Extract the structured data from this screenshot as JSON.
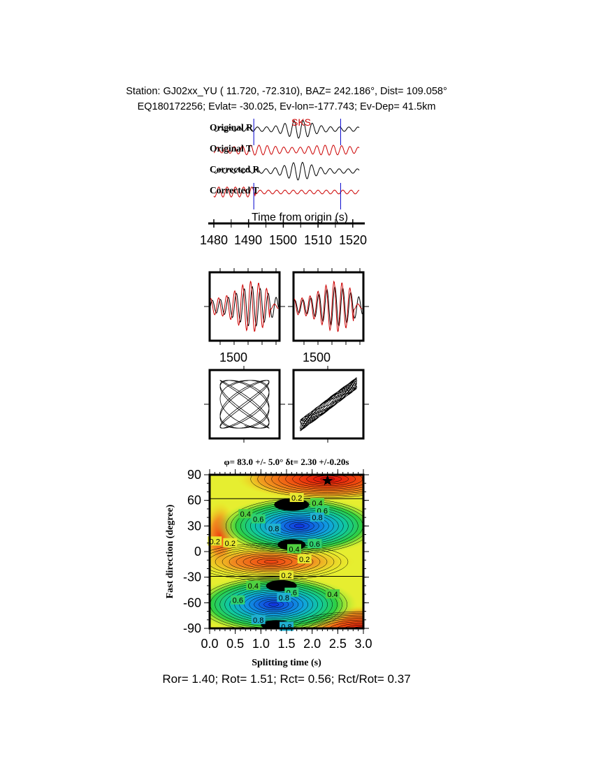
{
  "header": {
    "line1": "Station: GJ02xx_YU (  11.720,  -72.310), BAZ=  242.186°, Dist=  109.058°",
    "line2": "EQ180172256; Evlat= -30.025, Ev-lon=-177.743; Ev-Dep= 41.5km"
  },
  "traces": {
    "labels": [
      "Original R",
      "Original T",
      "Corrected R",
      "Corrected T"
    ],
    "phase": "SKS",
    "xlabel": "Time from origin (s)",
    "xticks": [
      "1480",
      "1490",
      "1500",
      "1510",
      "1520"
    ],
    "window_marks_s": [
      1491.5,
      1516.5
    ],
    "colors": {
      "radial": "#000000",
      "transverse": "#cc0000",
      "window": "#0000cc"
    }
  },
  "panels": {
    "tick_label_left": "1500",
    "tick_label_right": "1500"
  },
  "stats": "Ror= 1.40; Rot= 1.51; Rct= 0.56; Rct/Rot= 0.37",
  "chart_data": {
    "type": "heatmap",
    "title": "φ= 83.0 +/- 5.0° δt= 2.30 +/-0.20s",
    "xlabel": "Splitting time (s)",
    "ylabel": "Fast direction (degree)",
    "xlim": [
      0,
      3
    ],
    "ylim": [
      -90,
      90
    ],
    "xticks": [
      "0.0",
      "0.5",
      "1.0",
      "1.5",
      "2.0",
      "2.5",
      "3.0"
    ],
    "yticks": [
      "90",
      "60",
      "30",
      "0",
      "-30",
      "-60",
      "-90"
    ],
    "best_fit": {
      "dt": 2.3,
      "phi": 83.0
    },
    "contour_labels": [
      {
        "text": "0.2",
        "x": 1.7,
        "y": 63
      },
      {
        "text": "0.4",
        "x": 2.1,
        "y": 57
      },
      {
        "text": "0.6",
        "x": 2.2,
        "y": 48
      },
      {
        "text": "0.8",
        "x": 2.1,
        "y": 40
      },
      {
        "text": "0.4",
        "x": 0.7,
        "y": 44
      },
      {
        "text": "0.6",
        "x": 0.95,
        "y": 38
      },
      {
        "text": "0.8",
        "x": 1.25,
        "y": 27
      },
      {
        "text": "0.2",
        "x": 0.1,
        "y": 12
      },
      {
        "text": "0.2",
        "x": 0.4,
        "y": 10
      },
      {
        "text": "0.6",
        "x": 2.05,
        "y": 9
      },
      {
        "text": "0.4",
        "x": 1.65,
        "y": 3
      },
      {
        "text": "0.2",
        "x": 1.85,
        "y": -9
      },
      {
        "text": "0.2",
        "x": 1.5,
        "y": -28
      },
      {
        "text": "0.4",
        "x": 0.85,
        "y": -40
      },
      {
        "text": "0.6",
        "x": 1.6,
        "y": -48
      },
      {
        "text": "0.8",
        "x": 1.45,
        "y": -54
      },
      {
        "text": "0.4",
        "x": 2.4,
        "y": -50
      },
      {
        "text": "0.6",
        "x": 0.55,
        "y": -57
      },
      {
        "text": "0.8",
        "x": 0.95,
        "y": -80
      },
      {
        "text": "0.8",
        "x": 1.5,
        "y": -88
      }
    ],
    "colorscale": [
      "#e01010",
      "#f07020",
      "#f0e020",
      "#e8f030",
      "#40d040",
      "#10c0c0",
      "#1040e0",
      "#000000"
    ]
  }
}
